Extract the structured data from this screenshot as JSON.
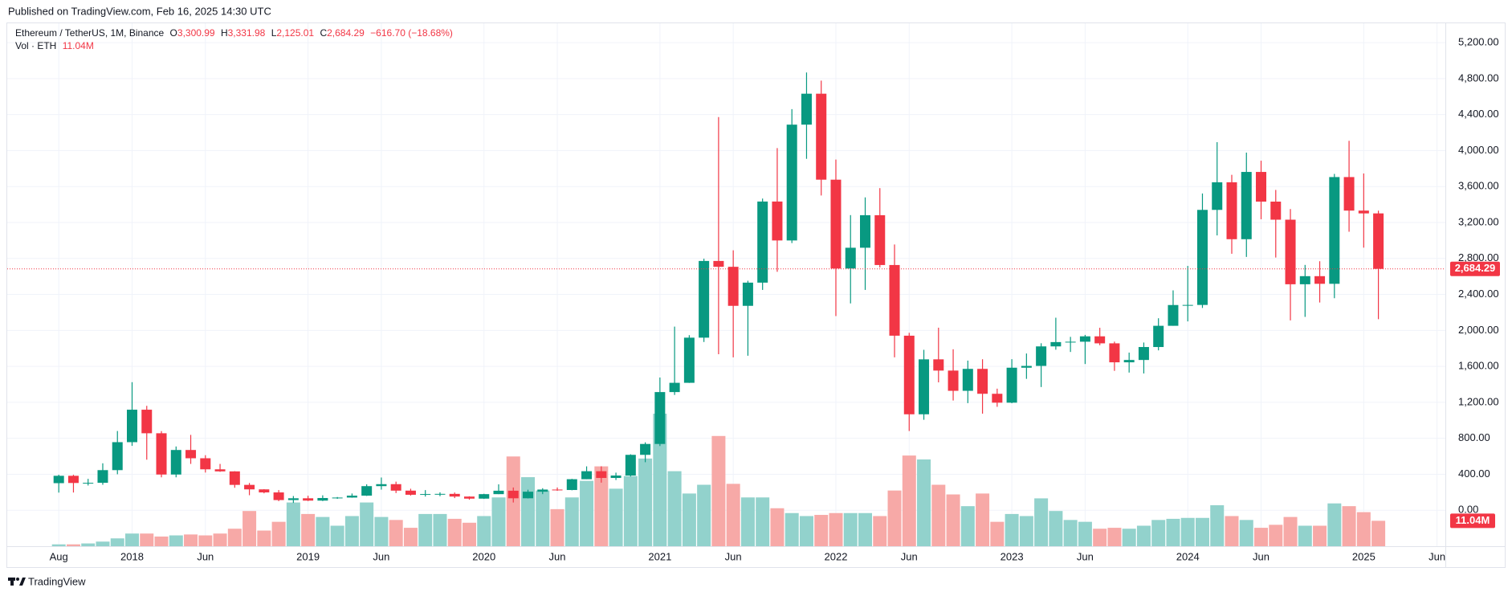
{
  "header": {
    "published": "Published on TradingView.com, Feb 16, 2025 14:30 UTC"
  },
  "footer": {
    "brand": "TradingView"
  },
  "chart_data": {
    "type": "candlestick",
    "title": "Ethereum / TetherUS, 1M, Binance",
    "legend": [
      {
        "key": "O",
        "label": "3,300.99"
      },
      {
        "key": "H",
        "label": "3,331.98"
      },
      {
        "key": "L",
        "label": "2,125.01"
      },
      {
        "key": "C",
        "label": "2,684.29"
      }
    ],
    "change_label": "−616.70 (−18.68%)",
    "volume_title": "Vol · ETH",
    "volume_last_label": "11.04M",
    "up_color": "#089981",
    "down_color": "#f23645",
    "volume_up_color": "#92d2cc",
    "volume_down_color": "#f7a9a7",
    "grid": true,
    "x": [
      "2017-08",
      "2017-09",
      "2017-10",
      "2017-11",
      "2017-12",
      "2018-01",
      "2018-02",
      "2018-03",
      "2018-04",
      "2018-05",
      "2018-06",
      "2018-07",
      "2018-08",
      "2018-09",
      "2018-10",
      "2018-11",
      "2018-12",
      "2019-01",
      "2019-02",
      "2019-03",
      "2019-04",
      "2019-05",
      "2019-06",
      "2019-07",
      "2019-08",
      "2019-09",
      "2019-10",
      "2019-11",
      "2019-12",
      "2020-01",
      "2020-02",
      "2020-03",
      "2020-04",
      "2020-05",
      "2020-06",
      "2020-07",
      "2020-08",
      "2020-09",
      "2020-10",
      "2020-11",
      "2020-12",
      "2021-01",
      "2021-02",
      "2021-03",
      "2021-04",
      "2021-05",
      "2021-06",
      "2021-07",
      "2021-08",
      "2021-09",
      "2021-10",
      "2021-11",
      "2021-12",
      "2022-01",
      "2022-02",
      "2022-03",
      "2022-04",
      "2022-05",
      "2022-06",
      "2022-07",
      "2022-08",
      "2022-09",
      "2022-10",
      "2022-11",
      "2022-12",
      "2023-01",
      "2023-02",
      "2023-03",
      "2023-04",
      "2023-05",
      "2023-06",
      "2023-07",
      "2023-08",
      "2023-09",
      "2023-10",
      "2023-11",
      "2023-12",
      "2024-01",
      "2024-02",
      "2024-03",
      "2024-04",
      "2024-05",
      "2024-06",
      "2024-07",
      "2024-08",
      "2024-09",
      "2024-10",
      "2024-11",
      "2024-12",
      "2025-01",
      "2025-02"
    ],
    "open": [
      301,
      383,
      303,
      305,
      446,
      757,
      1118,
      856,
      397,
      670,
      578,
      455,
      432,
      282,
      232,
      198,
      113,
      133,
      107,
      136,
      141,
      162,
      268,
      290,
      218,
      172,
      180,
      182,
      152,
      129,
      179,
      217,
      133,
      206,
      230,
      225,
      345,
      434,
      359,
      386,
      616,
      737,
      1314,
      1417,
      1919,
      2772,
      2707,
      2273,
      2531,
      3433,
      3000,
      4288,
      4632,
      3676,
      2688,
      2919,
      3281,
      2727,
      1941,
      1067,
      1678,
      1553,
      1328,
      1572,
      1295,
      1196,
      1585,
      1605,
      1822,
      1870,
      1874,
      1934,
      1856,
      1645,
      1671,
      1815,
      2051,
      2282,
      2283,
      3340,
      3647,
      3014,
      3762,
      3432,
      3231,
      2513,
      2603,
      2518,
      3705,
      3332,
      3300.99
    ],
    "high": [
      395,
      394,
      349,
      522,
      881,
      1424,
      1161,
      880,
      709,
      838,
      612,
      515,
      434,
      303,
      234,
      224,
      158,
      161,
      166,
      147,
      186,
      288,
      364,
      318,
      239,
      224,
      199,
      197,
      155,
      183,
      288,
      253,
      228,
      245,
      253,
      349,
      488,
      489,
      418,
      622,
      755,
      1476,
      2042,
      1947,
      2797,
      4372,
      2891,
      2552,
      3466,
      4027,
      4460,
      4868,
      4778,
      3900,
      3282,
      3479,
      3582,
      2955,
      1973,
      1784,
      2030,
      1790,
      1664,
      1679,
      1352,
      1680,
      1743,
      1857,
      2141,
      1928,
      1950,
      2029,
      1875,
      1753,
      1865,
      2135,
      2445,
      2717,
      3522,
      4093,
      3730,
      3977,
      3887,
      3562,
      3349,
      2728,
      2769,
      3740,
      4108,
      3745,
      3331.98
    ],
    "low": [
      196,
      197,
      275,
      283,
      400,
      716,
      562,
      366,
      366,
      515,
      419,
      427,
      250,
      167,
      188,
      101,
      81,
      102,
      102,
      127,
      139,
      159,
      229,
      191,
      163,
      152,
      156,
      135,
      117,
      126,
      179,
      86,
      131,
      179,
      216,
      222,
      345,
      307,
      336,
      375,
      534,
      714,
      1282,
      1416,
      1871,
      1735,
      1700,
      1718,
      2450,
      2651,
      2971,
      3908,
      3500,
      2159,
      2300,
      2450,
      2700,
      1700,
      881,
      1006,
      1422,
      1220,
      1191,
      1074,
      1150,
      1190,
      1461,
      1370,
      1785,
      1760,
      1626,
      1835,
      1550,
      1531,
      1521,
      1778,
      2051,
      2100,
      2250,
      3056,
      2852,
      2817,
      3236,
      2810,
      2111,
      2150,
      2310,
      2358,
      3097,
      2920,
      2125.01
    ],
    "close": [
      383,
      303,
      305,
      446,
      757,
      1118,
      856,
      397,
      670,
      578,
      455,
      432,
      282,
      232,
      198,
      113,
      133,
      107,
      136,
      141,
      162,
      268,
      290,
      218,
      172,
      180,
      182,
      152,
      129,
      179,
      217,
      133,
      206,
      230,
      225,
      345,
      434,
      359,
      386,
      616,
      737,
      1314,
      1417,
      1919,
      2772,
      2707,
      2273,
      2531,
      3433,
      3000,
      4288,
      4632,
      3676,
      2688,
      2919,
      3281,
      2727,
      1941,
      1067,
      1678,
      1553,
      1328,
      1572,
      1295,
      1196,
      1585,
      1605,
      1822,
      1870,
      1874,
      1934,
      1856,
      1645,
      1671,
      1815,
      2051,
      2282,
      2283,
      3340,
      3647,
      3014,
      3762,
      3432,
      3231,
      2513,
      2603,
      2518,
      3705,
      3332,
      3300.99,
      2684.29
    ],
    "volume": [
      800000,
      800000,
      1200000,
      2000000,
      3400000,
      5500000,
      5500000,
      4200000,
      4700000,
      5100000,
      4700000,
      5500000,
      7600000,
      15300000,
      6800000,
      10600000,
      19000000,
      14000000,
      12700000,
      8900000,
      13100000,
      19000000,
      12700000,
      11400000,
      8000000,
      14000000,
      14000000,
      11900000,
      10200000,
      13100000,
      21200000,
      39000000,
      30000000,
      24200000,
      16100000,
      21200000,
      28400000,
      34700000,
      25000000,
      30500000,
      38100000,
      57600000,
      32600000,
      22900000,
      26700000,
      47900000,
      27100000,
      21200000,
      21200000,
      16500000,
      14400000,
      13100000,
      13600000,
      14400000,
      14400000,
      14400000,
      13100000,
      24200000,
      39400000,
      37700000,
      26700000,
      22500000,
      17400000,
      22900000,
      10600000,
      14000000,
      13100000,
      20800000,
      15300000,
      11400000,
      10600000,
      7600000,
      8000000,
      7600000,
      8900000,
      11400000,
      11900000,
      12300000,
      12300000,
      17800000,
      13100000,
      11400000,
      8000000,
      9300000,
      12700000,
      8900000,
      8900000,
      18600000,
      17400000,
      14800000,
      11040000
    ],
    "ylim": [
      -400,
      5415
    ],
    "yticks": [
      {
        "value": 0,
        "label": "0.00"
      },
      {
        "value": 400,
        "label": "400.00"
      },
      {
        "value": 800,
        "label": "800.00"
      },
      {
        "value": 1200,
        "label": "1,200.00"
      },
      {
        "value": 1600,
        "label": "1,600.00"
      },
      {
        "value": 2000,
        "label": "2,000.00"
      },
      {
        "value": 2400,
        "label": "2,400.00"
      },
      {
        "value": 2800,
        "label": "2,800.00"
      },
      {
        "value": 3200,
        "label": "3,200.00"
      },
      {
        "value": 3600,
        "label": "3,600.00"
      },
      {
        "value": 4000,
        "label": "4,000.00"
      },
      {
        "value": 4400,
        "label": "4,400.00"
      },
      {
        "value": 4800,
        "label": "4,800.00"
      },
      {
        "value": 5200,
        "label": "5,200.00"
      }
    ],
    "xticks": [
      {
        "value": "2017-08",
        "label": "Aug"
      },
      {
        "value": "2018-01",
        "label": "2018"
      },
      {
        "value": "2018-06",
        "label": "Jun"
      },
      {
        "value": "2019-01",
        "label": "2019"
      },
      {
        "value": "2019-06",
        "label": "Jun"
      },
      {
        "value": "2020-01",
        "label": "2020"
      },
      {
        "value": "2020-06",
        "label": "Jun"
      },
      {
        "value": "2021-01",
        "label": "2021"
      },
      {
        "value": "2021-06",
        "label": "Jun"
      },
      {
        "value": "2022-01",
        "label": "2022"
      },
      {
        "value": "2022-06",
        "label": "Jun"
      },
      {
        "value": "2023-01",
        "label": "2023"
      },
      {
        "value": "2023-06",
        "label": "Jun"
      },
      {
        "value": "2024-01",
        "label": "2024"
      },
      {
        "value": "2024-06",
        "label": "Jun"
      },
      {
        "value": "2025-01",
        "label": "2025"
      },
      {
        "value": "2025-06",
        "label": "Jun"
      }
    ]
  }
}
